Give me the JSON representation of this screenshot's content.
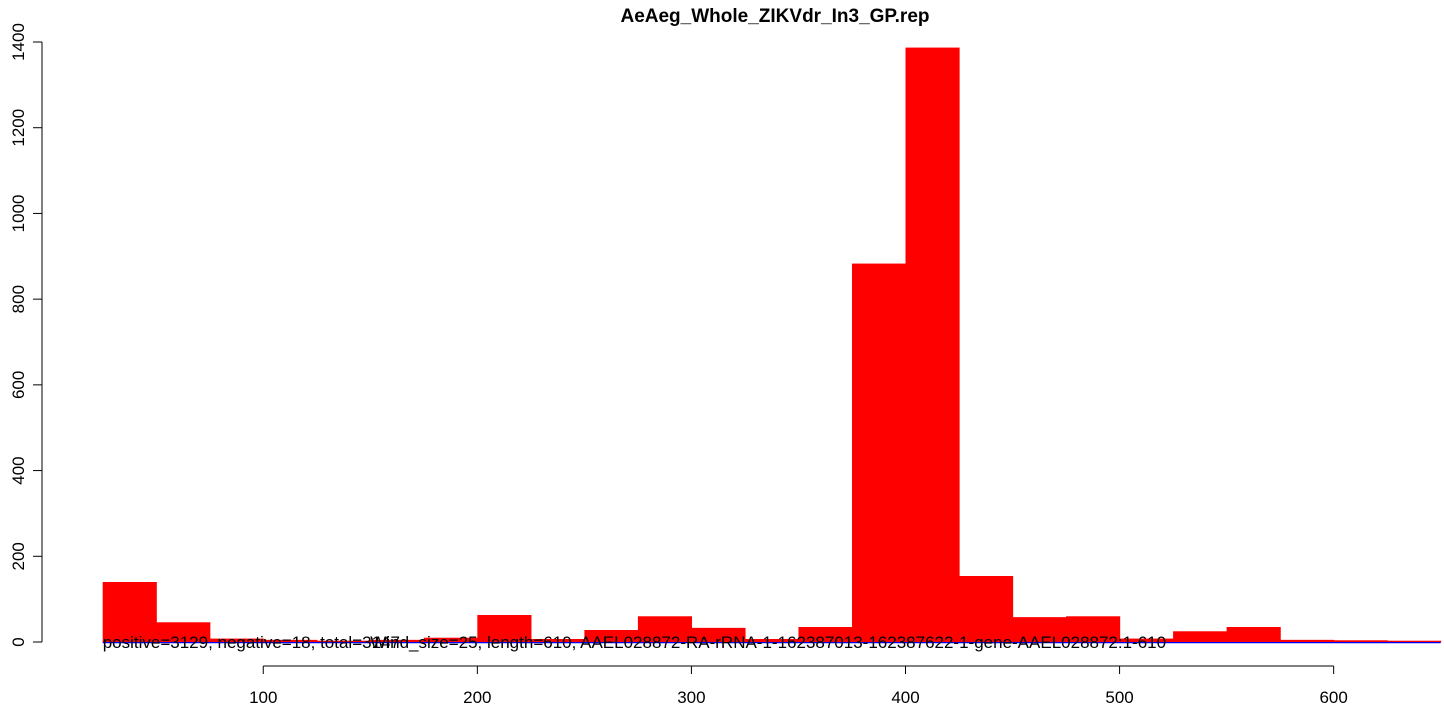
{
  "chart_data": {
    "type": "bar",
    "title": "AeAeg_Whole_ZIKVdr_In3_GP.rep",
    "xlabel": "",
    "ylabel": "",
    "xlim": [
      25,
      650
    ],
    "ylim": [
      0,
      1400
    ],
    "x_ticks": [
      100,
      200,
      300,
      400,
      500,
      600
    ],
    "y_ticks": [
      0,
      200,
      400,
      600,
      800,
      1000,
      1200,
      1400
    ],
    "bin_width": 25,
    "bin_starts": [
      25,
      50,
      75,
      100,
      125,
      150,
      175,
      200,
      225,
      250,
      275,
      300,
      325,
      350,
      375,
      400,
      425,
      450,
      475,
      500,
      525,
      550,
      575,
      600,
      625
    ],
    "values": [
      140,
      46,
      8,
      5,
      3,
      5,
      10,
      63,
      7,
      28,
      60,
      33,
      7,
      35,
      883,
      1387,
      154,
      58,
      60,
      8,
      25,
      35,
      5,
      4,
      3
    ],
    "bar_color": "#ff0000",
    "grid": false,
    "legend": "none",
    "annotations": [
      {
        "text": "positive=3129, negative=18, total=3147",
        "x": 25,
        "y": 0
      },
      {
        "text": "Wind_size=25, length=610, AAEL028872-RA-rRNA-1-162387013-162387622-1-gene-AAEL028872:1-610",
        "x": 150,
        "y": 0
      }
    ],
    "lines": [
      {
        "color": "#ff0000",
        "y": 0
      },
      {
        "color": "#0000ff",
        "y": 0
      }
    ]
  }
}
